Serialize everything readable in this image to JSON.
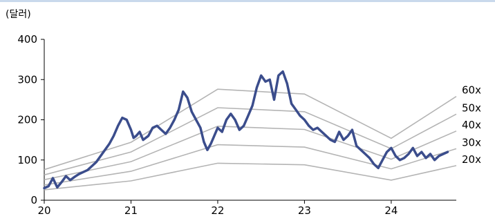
{
  "chart_data": {
    "type": "line",
    "unit_label": "(달러)",
    "title": "",
    "xlabel": "",
    "ylabel": "",
    "ylim": [
      0,
      400
    ],
    "yticks": [
      0,
      100,
      200,
      300,
      400
    ],
    "xlim": [
      2020.0,
      2024.75
    ],
    "xticks": [
      {
        "value": 2020,
        "label": "20"
      },
      {
        "value": 2021,
        "label": "21"
      },
      {
        "value": 2022,
        "label": "22"
      },
      {
        "value": 2023,
        "label": "23"
      },
      {
        "value": 2024,
        "label": "24"
      }
    ],
    "grid": false,
    "colors": {
      "price": "#3b4d8c",
      "bands": "#b4b4b4",
      "top_rule": "#c9d9ec"
    },
    "price": {
      "x": [
        2020.0,
        2020.05,
        2020.1,
        2020.15,
        2020.2,
        2020.25,
        2020.3,
        2020.35,
        2020.4,
        2020.45,
        2020.5,
        2020.55,
        2020.6,
        2020.65,
        2020.7,
        2020.75,
        2020.8,
        2020.85,
        2020.9,
        2020.95,
        2021.0,
        2021.03,
        2021.06,
        2021.1,
        2021.14,
        2021.2,
        2021.25,
        2021.3,
        2021.35,
        2021.4,
        2021.45,
        2021.5,
        2021.55,
        2021.6,
        2021.65,
        2021.7,
        2021.75,
        2021.8,
        2021.84,
        2021.88,
        2021.92,
        2021.96,
        2022.0,
        2022.05,
        2022.1,
        2022.15,
        2022.2,
        2022.25,
        2022.3,
        2022.35,
        2022.4,
        2022.45,
        2022.5,
        2022.55,
        2022.6,
        2022.65,
        2022.7,
        2022.75,
        2022.8,
        2022.85,
        2022.9,
        2022.95,
        2023.0,
        2023.05,
        2023.1,
        2023.15,
        2023.2,
        2023.25,
        2023.3,
        2023.35,
        2023.4,
        2023.45,
        2023.5,
        2023.55,
        2023.6,
        2023.65,
        2023.7,
        2023.75,
        2023.8,
        2023.85,
        2023.9,
        2023.95,
        2024.0,
        2024.05,
        2024.1,
        2024.15,
        2024.2,
        2024.25,
        2024.3,
        2024.35,
        2024.4,
        2024.45,
        2024.5,
        2024.55,
        2024.6,
        2024.65
      ],
      "y": [
        30,
        35,
        55,
        32,
        45,
        60,
        50,
        58,
        65,
        70,
        75,
        85,
        95,
        110,
        125,
        140,
        160,
        185,
        205,
        200,
        175,
        155,
        160,
        170,
        150,
        160,
        180,
        185,
        175,
        165,
        180,
        200,
        225,
        270,
        255,
        220,
        200,
        180,
        145,
        125,
        140,
        160,
        180,
        170,
        200,
        215,
        200,
        175,
        185,
        210,
        235,
        280,
        310,
        295,
        300,
        250,
        310,
        320,
        290,
        240,
        225,
        210,
        200,
        185,
        175,
        180,
        170,
        160,
        150,
        145,
        170,
        150,
        160,
        175,
        135,
        125,
        115,
        105,
        90,
        80,
        100,
        120,
        130,
        110,
        100,
        105,
        115,
        130,
        110,
        120,
        105,
        115,
        100,
        110,
        115,
        120
      ]
    },
    "bands": [
      {
        "label": "20x",
        "x": [
          2020.0,
          2021.0,
          2022.0,
          2023.0,
          2024.0,
          2024.75
        ],
        "y": [
          26,
          48,
          92,
          88,
          50,
          86
        ]
      },
      {
        "label": "30x",
        "x": [
          2020.0,
          2021.0,
          2022.0,
          2023.0,
          2024.0,
          2024.75
        ],
        "y": [
          38,
          72,
          138,
          132,
          78,
          128
        ]
      },
      {
        "label": "40x",
        "x": [
          2020.0,
          2021.0,
          2022.0,
          2023.0,
          2024.0,
          2024.75
        ],
        "y": [
          51,
          96,
          184,
          176,
          102,
          172
        ]
      },
      {
        "label": "50x",
        "x": [
          2020.0,
          2021.0,
          2022.0,
          2023.0,
          2024.0,
          2024.75
        ],
        "y": [
          63,
          120,
          230,
          220,
          128,
          214
        ]
      },
      {
        "label": "60x",
        "x": [
          2020.0,
          2021.0,
          2022.0,
          2023.0,
          2024.0,
          2024.75
        ],
        "y": [
          76,
          144,
          276,
          264,
          154,
          258
        ]
      }
    ]
  }
}
